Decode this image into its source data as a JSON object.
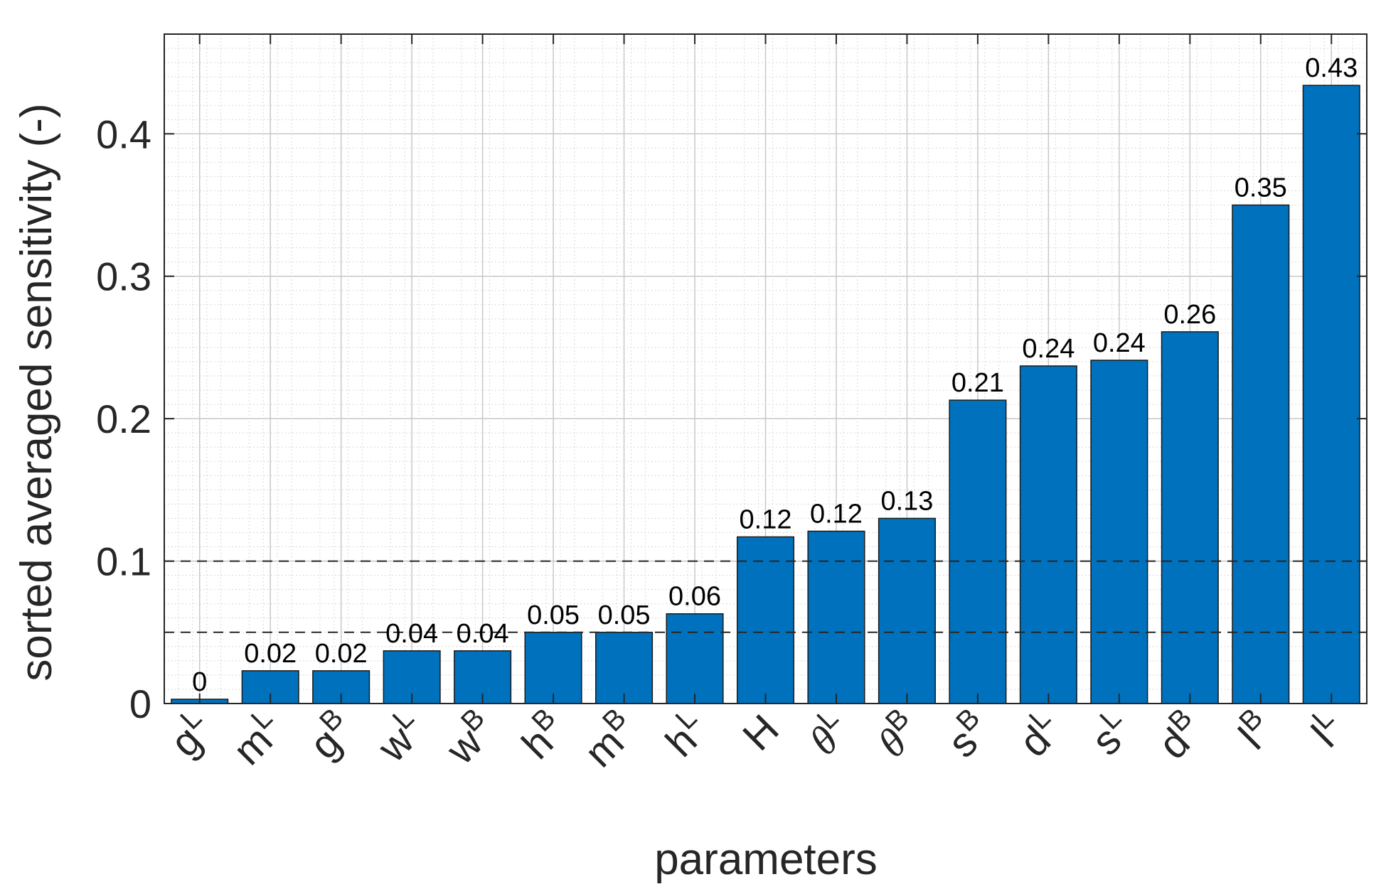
{
  "chart_data": {
    "type": "bar",
    "title": "",
    "xlabel": "parameters",
    "ylabel": "sorted averaged sensitivity (-)",
    "ylim": [
      0,
      0.47
    ],
    "yticks": [
      0,
      0.1,
      0.2,
      0.3,
      0.4
    ],
    "ytick_labels": [
      "0",
      "0.1",
      "0.2",
      "0.3",
      "0.4"
    ],
    "grid": "major and minor",
    "categories": [
      {
        "base": "g",
        "sup": "L",
        "italic": false
      },
      {
        "base": "m",
        "sup": "L",
        "italic": false
      },
      {
        "base": "g",
        "sup": "B",
        "italic": false
      },
      {
        "base": "w",
        "sup": "L",
        "italic": false
      },
      {
        "base": "w",
        "sup": "B",
        "italic": false
      },
      {
        "base": "h",
        "sup": "B",
        "italic": false
      },
      {
        "base": "m",
        "sup": "B",
        "italic": false
      },
      {
        "base": "h",
        "sup": "L",
        "italic": false
      },
      {
        "base": "H",
        "sup": "",
        "italic": false
      },
      {
        "base": "θ",
        "sup": "L",
        "italic": true
      },
      {
        "base": "θ",
        "sup": "B",
        "italic": true
      },
      {
        "base": "s",
        "sup": "B",
        "italic": false
      },
      {
        "base": "d",
        "sup": "L",
        "italic": false
      },
      {
        "base": "s",
        "sup": "L",
        "italic": false
      },
      {
        "base": "d",
        "sup": "B",
        "italic": false
      },
      {
        "base": "l",
        "sup": "B",
        "italic": false
      },
      {
        "base": "l",
        "sup": "L",
        "italic": false
      }
    ],
    "values": [
      0.003,
      0.023,
      0.023,
      0.037,
      0.037,
      0.05,
      0.05,
      0.063,
      0.117,
      0.121,
      0.13,
      0.213,
      0.237,
      0.241,
      0.261,
      0.35,
      0.434
    ],
    "data_labels": [
      "0",
      "0.02",
      "0.02",
      "0.04",
      "0.04",
      "0.05",
      "0.05",
      "0.06",
      "0.12",
      "0.12",
      "0.13",
      "0.21",
      "0.24",
      "0.24",
      "0.26",
      "0.35",
      "0.43"
    ],
    "reference_lines": [
      0.05,
      0.1
    ],
    "colors": {
      "bar": "#0072BD",
      "bar_edge": "#1a1a1a",
      "reference_line": "#262626",
      "grid": "#d9d9d9",
      "axis": "#262626"
    }
  }
}
